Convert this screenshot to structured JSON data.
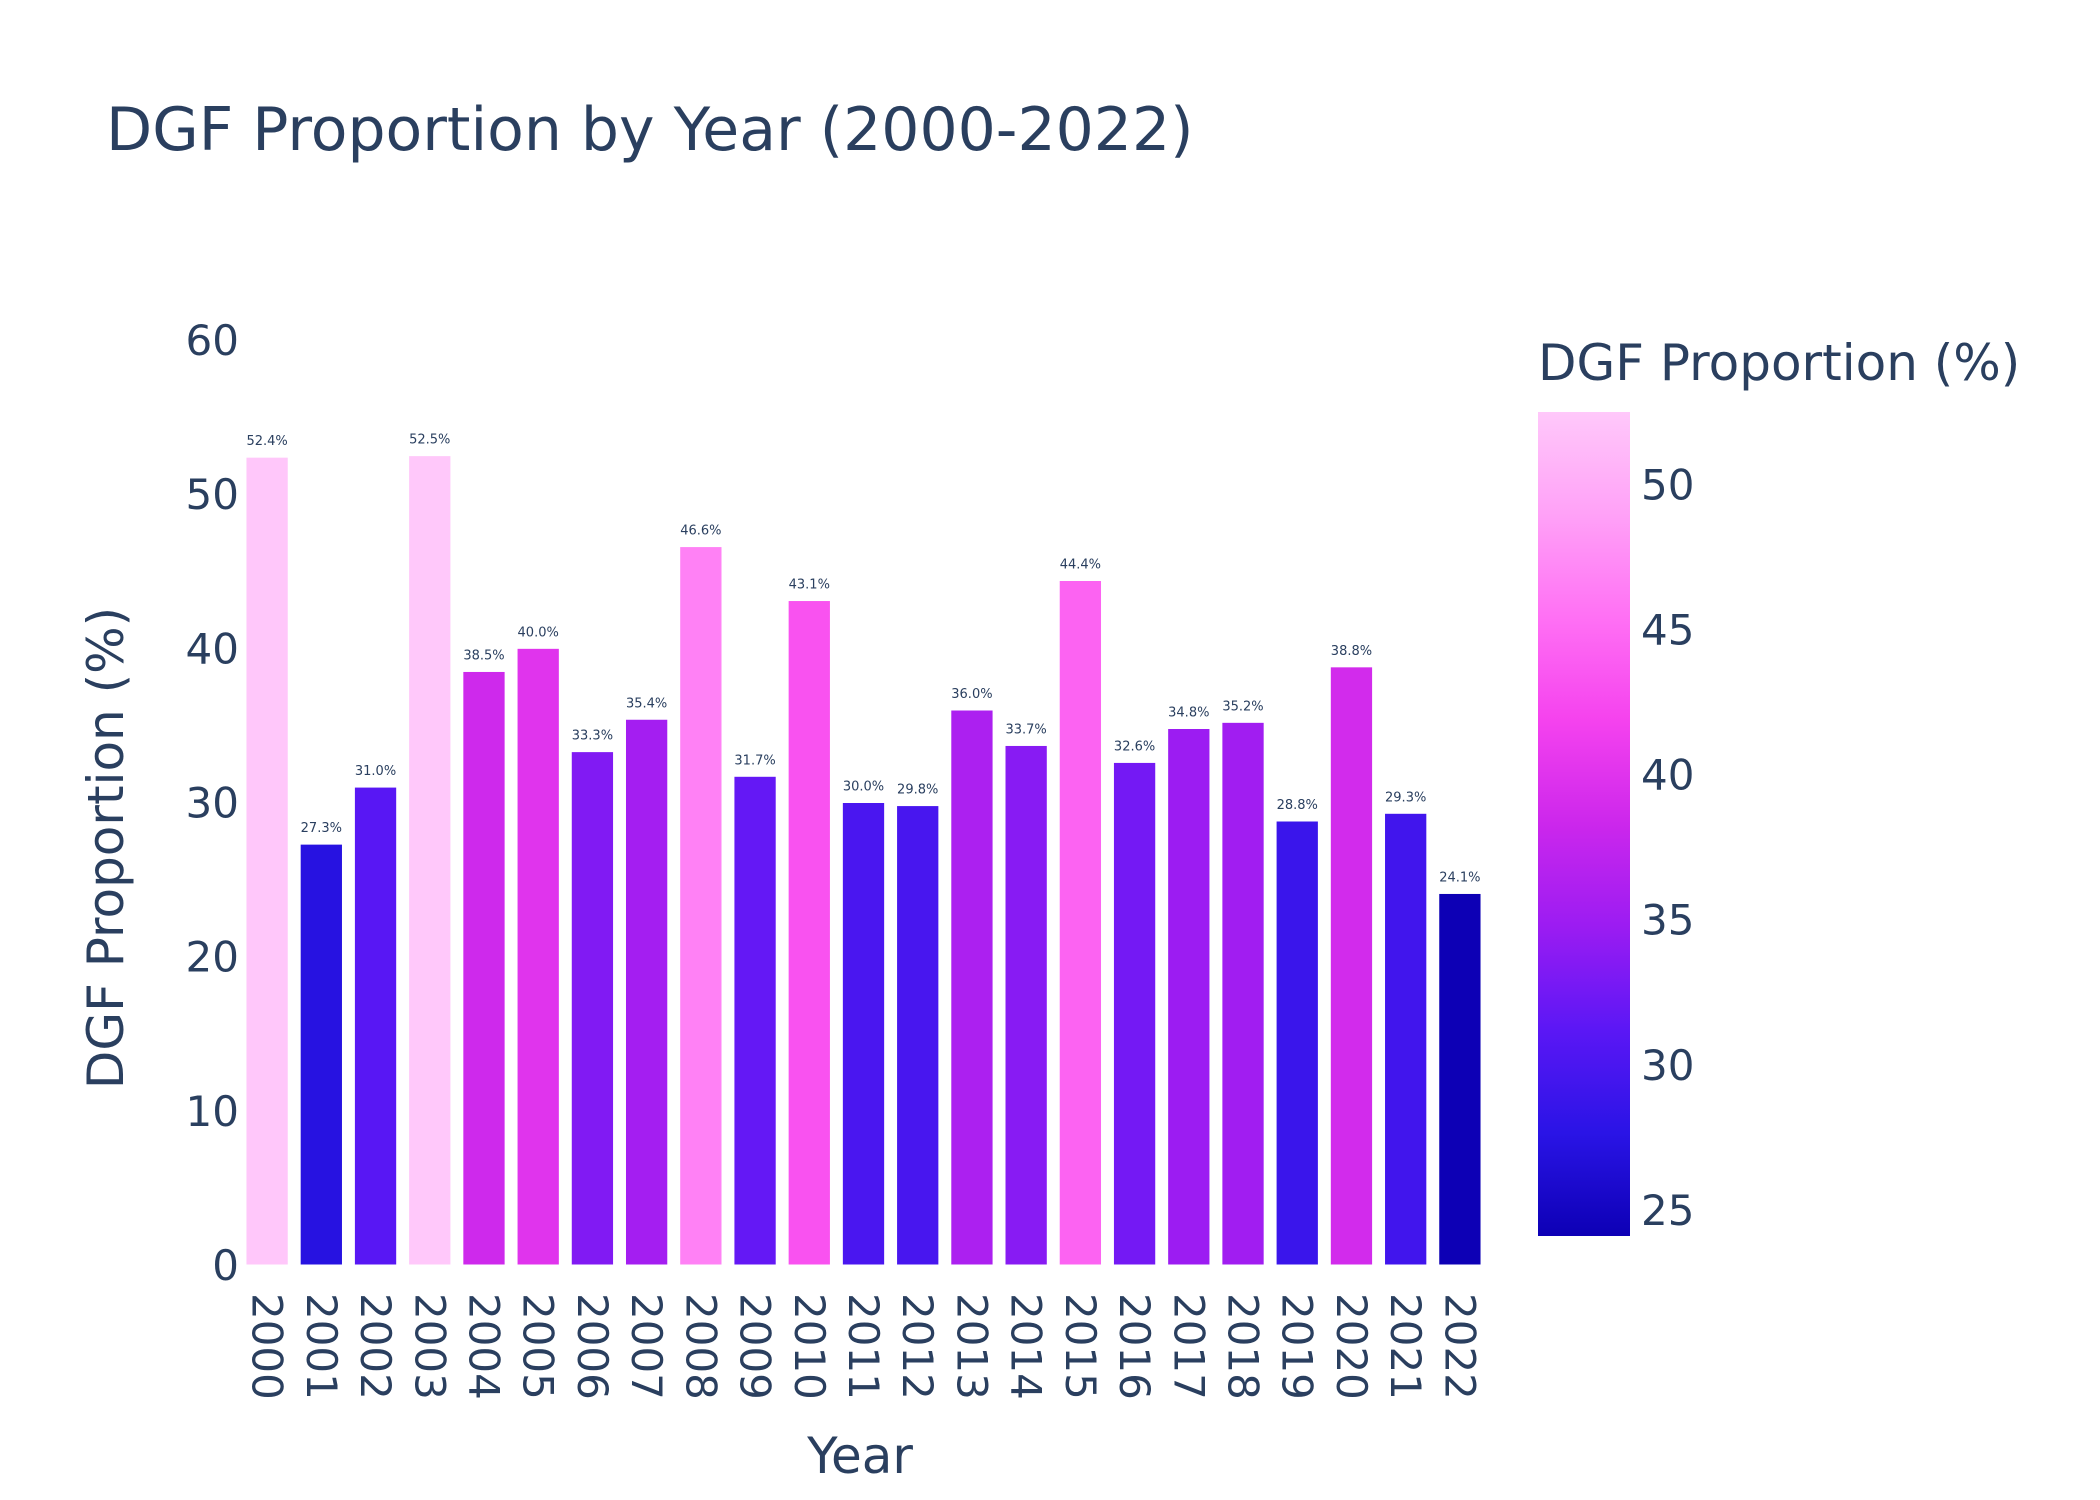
{
  "chart_data": {
    "type": "bar",
    "title": "DGF Proportion by Year (2000-2022)",
    "xlabel": "Year",
    "ylabel": "DGF Proportion (%)",
    "ylim": [
      0,
      60
    ],
    "yticks": [
      "0",
      "10",
      "20",
      "30",
      "40",
      "50",
      "60"
    ],
    "grid": false,
    "categories": [
      "2000",
      "2001",
      "2002",
      "2003",
      "2004",
      "2005",
      "2006",
      "2007",
      "2008",
      "2009",
      "2010",
      "2011",
      "2012",
      "2013",
      "2014",
      "2015",
      "2016",
      "2017",
      "2018",
      "2019",
      "2020",
      "2021",
      "2022"
    ],
    "values": [
      52.4,
      27.3,
      31.0,
      52.5,
      38.5,
      40.0,
      33.3,
      35.4,
      46.6,
      31.7,
      43.1,
      30.0,
      29.8,
      36.0,
      33.7,
      44.4,
      32.6,
      34.8,
      35.2,
      28.8,
      38.8,
      29.3,
      24.1
    ],
    "data_labels": [
      "52.4%",
      "27.3%",
      "31.0%",
      "52.5%",
      "38.5%",
      "40.0%",
      "33.3%",
      "35.4%",
      "46.6%",
      "31.7%",
      "43.1%",
      "30.0%",
      "29.8%",
      "36.0%",
      "33.7%",
      "44.4%",
      "32.6%",
      "34.8%",
      "35.2%",
      "28.8%",
      "38.8%",
      "29.3%",
      "24.1%"
    ],
    "colorbar": {
      "title": "DGF Proportion (%)",
      "range": [
        24.1,
        52.5
      ],
      "ticks": [
        "25",
        "30",
        "35",
        "40",
        "45",
        "50"
      ],
      "colorscale": [
        "#0d00b5",
        "#2a14e6",
        "#5b17f5",
        "#9b1cf2",
        "#cc27ec",
        "#f542ee",
        "#ff70f4",
        "#ffa1f7",
        "#ffc8fa"
      ]
    }
  }
}
